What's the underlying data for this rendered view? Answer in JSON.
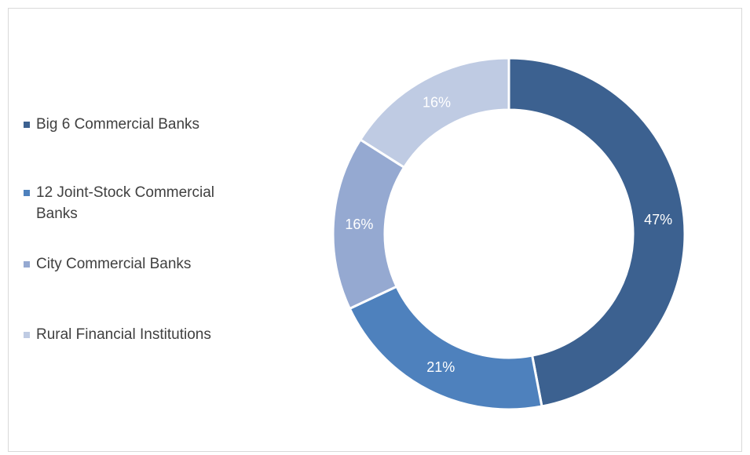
{
  "chart_data": {
    "type": "pie",
    "variant": "donut",
    "title": "",
    "categories": [
      "Big 6 Commercial Banks",
      "12 Joint-Stock Commercial Banks",
      "City Commercial Banks",
      "Rural Financial Institutions"
    ],
    "values": [
      47,
      21,
      16,
      16
    ],
    "data_labels": [
      "47%",
      "21%",
      "16%",
      "16%"
    ],
    "colors": [
      "#3c6190",
      "#4e81bd",
      "#95a9d1",
      "#bfcbe3"
    ],
    "legend_position": "left"
  }
}
